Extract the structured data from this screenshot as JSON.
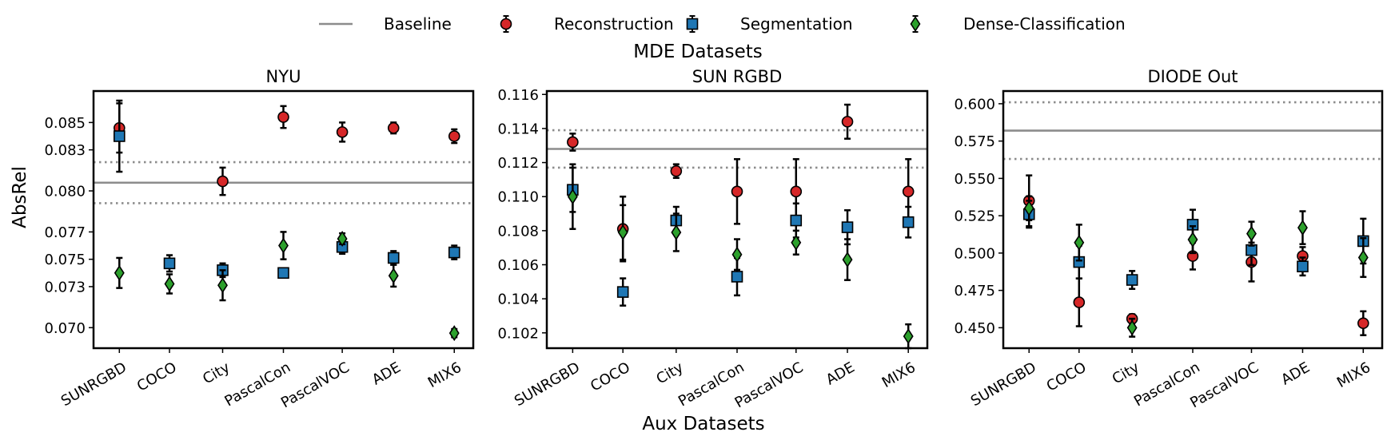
{
  "legend": {
    "items": [
      {
        "label": "Baseline",
        "marker": "line",
        "color": "#8c8c8c"
      },
      {
        "label": "Reconstruction",
        "marker": "circle",
        "color": "#d62728"
      },
      {
        "label": "Segmentation",
        "marker": "square",
        "color": "#1f77b4"
      },
      {
        "label": "Dense-Classification",
        "marker": "diamond",
        "color": "#2ca02c"
      }
    ]
  },
  "figure_title": "MDE Datasets",
  "figure_xlabel": "Aux Datasets",
  "figure_ylabel": "AbsRel",
  "chart_data": [
    {
      "type": "scatter",
      "title": "NYU",
      "categories": [
        "SUNRGBD",
        "COCO",
        "City",
        "PascalCon",
        "PascalVOC",
        "ADE",
        "MIX6"
      ],
      "ylim": [
        0.0685,
        0.0873
      ],
      "yticks": [
        0.07,
        0.073,
        0.075,
        0.077,
        0.08,
        0.083,
        0.085
      ],
      "ytick_labels": [
        "0.070",
        "0.073",
        "0.075",
        "0.077",
        "0.080",
        "0.083",
        "0.085"
      ],
      "baseline": {
        "value": 0.0806,
        "upper": 0.0821,
        "lower": 0.0791
      },
      "series": [
        {
          "name": "Reconstruction",
          "values": [
            0.0846,
            null,
            0.0807,
            0.0854,
            0.0843,
            0.0846,
            0.084
          ],
          "err": [
            0.0018,
            null,
            0.001,
            0.0008,
            0.0007,
            0.0004,
            0.0005
          ]
        },
        {
          "name": "Segmentation",
          "values": [
            0.084,
            0.0747,
            0.0742,
            0.074,
            0.0759,
            0.0751,
            0.0755
          ],
          "err": [
            0.0026,
            0.0006,
            0.0005,
            0.0003,
            0.0005,
            0.0005,
            0.0005
          ]
        },
        {
          "name": "Dense-Classification",
          "values": [
            0.074,
            0.0732,
            0.0731,
            0.076,
            0.0765,
            0.0738,
            0.0696
          ],
          "err": [
            0.0011,
            0.0007,
            0.0011,
            0.001,
            0.0004,
            0.0008,
            0.0003
          ]
        }
      ]
    },
    {
      "type": "scatter",
      "title": "SUN RGBD",
      "categories": [
        "SUNRGBD",
        "COCO",
        "City",
        "PascalCon",
        "PascalVOC",
        "ADE",
        "MIX6"
      ],
      "ylim": [
        0.1011,
        0.1162
      ],
      "yticks": [
        0.102,
        0.104,
        0.106,
        0.108,
        0.11,
        0.112,
        0.114,
        0.116
      ],
      "ytick_labels": [
        "0.102",
        "0.104",
        "0.106",
        "0.108",
        "0.110",
        "0.112",
        "0.114",
        "0.116"
      ],
      "baseline": {
        "value": 0.1128,
        "upper": 0.1139,
        "lower": 0.1117
      },
      "series": [
        {
          "name": "Reconstruction",
          "values": [
            0.1132,
            0.1081,
            0.1115,
            0.1103,
            0.1103,
            0.1144,
            0.1103
          ],
          "err": [
            0.0005,
            0.0019,
            0.0004,
            0.0019,
            0.0019,
            0.001,
            0.0019
          ]
        },
        {
          "name": "Segmentation",
          "values": [
            0.1104,
            0.1044,
            0.1086,
            0.1053,
            0.1086,
            0.1082,
            0.1085
          ],
          "err": [
            0.0013,
            0.0008,
            0.0008,
            0.0011,
            0.001,
            0.001,
            0.0009
          ]
        },
        {
          "name": "Dense-Classification",
          "values": [
            0.11,
            0.1079,
            0.1079,
            0.1066,
            0.1073,
            0.1063,
            0.1018
          ],
          "err": [
            0.0019,
            0.0016,
            0.0011,
            0.0009,
            0.0007,
            0.0012,
            0.0007
          ]
        }
      ]
    },
    {
      "type": "scatter",
      "title": "DIODE Out",
      "categories": [
        "SUNRGBD",
        "COCO",
        "City",
        "PascalCon",
        "PascalVOC",
        "ADE",
        "MIX6"
      ],
      "ylim": [
        0.4363,
        0.6085
      ],
      "yticks": [
        0.45,
        0.475,
        0.5,
        0.525,
        0.55,
        0.575,
        0.6
      ],
      "ytick_labels": [
        "0.450",
        "0.475",
        "0.500",
        "0.525",
        "0.550",
        "0.575",
        "0.600"
      ],
      "baseline": {
        "value": 0.582,
        "upper": 0.601,
        "lower": 0.563
      },
      "series": [
        {
          "name": "Reconstruction",
          "values": [
            0.535,
            0.467,
            0.456,
            0.498,
            0.494,
            0.498,
            0.453
          ],
          "err": [
            0.017,
            0.016,
            0.003,
            0.009,
            0.013,
            0.006,
            0.008
          ]
        },
        {
          "name": "Segmentation",
          "values": [
            0.526,
            0.494,
            0.482,
            0.519,
            0.502,
            0.491,
            0.508
          ],
          "err": [
            0.009,
            0.011,
            0.006,
            0.01,
            0.01,
            0.006,
            0.015
          ]
        },
        {
          "name": "Dense-Classification",
          "values": [
            0.53,
            0.507,
            0.45,
            0.509,
            0.513,
            0.517,
            0.497
          ],
          "err": [
            0.008,
            0.012,
            0.006,
            0.009,
            0.008,
            0.011,
            0.013
          ]
        }
      ]
    }
  ]
}
